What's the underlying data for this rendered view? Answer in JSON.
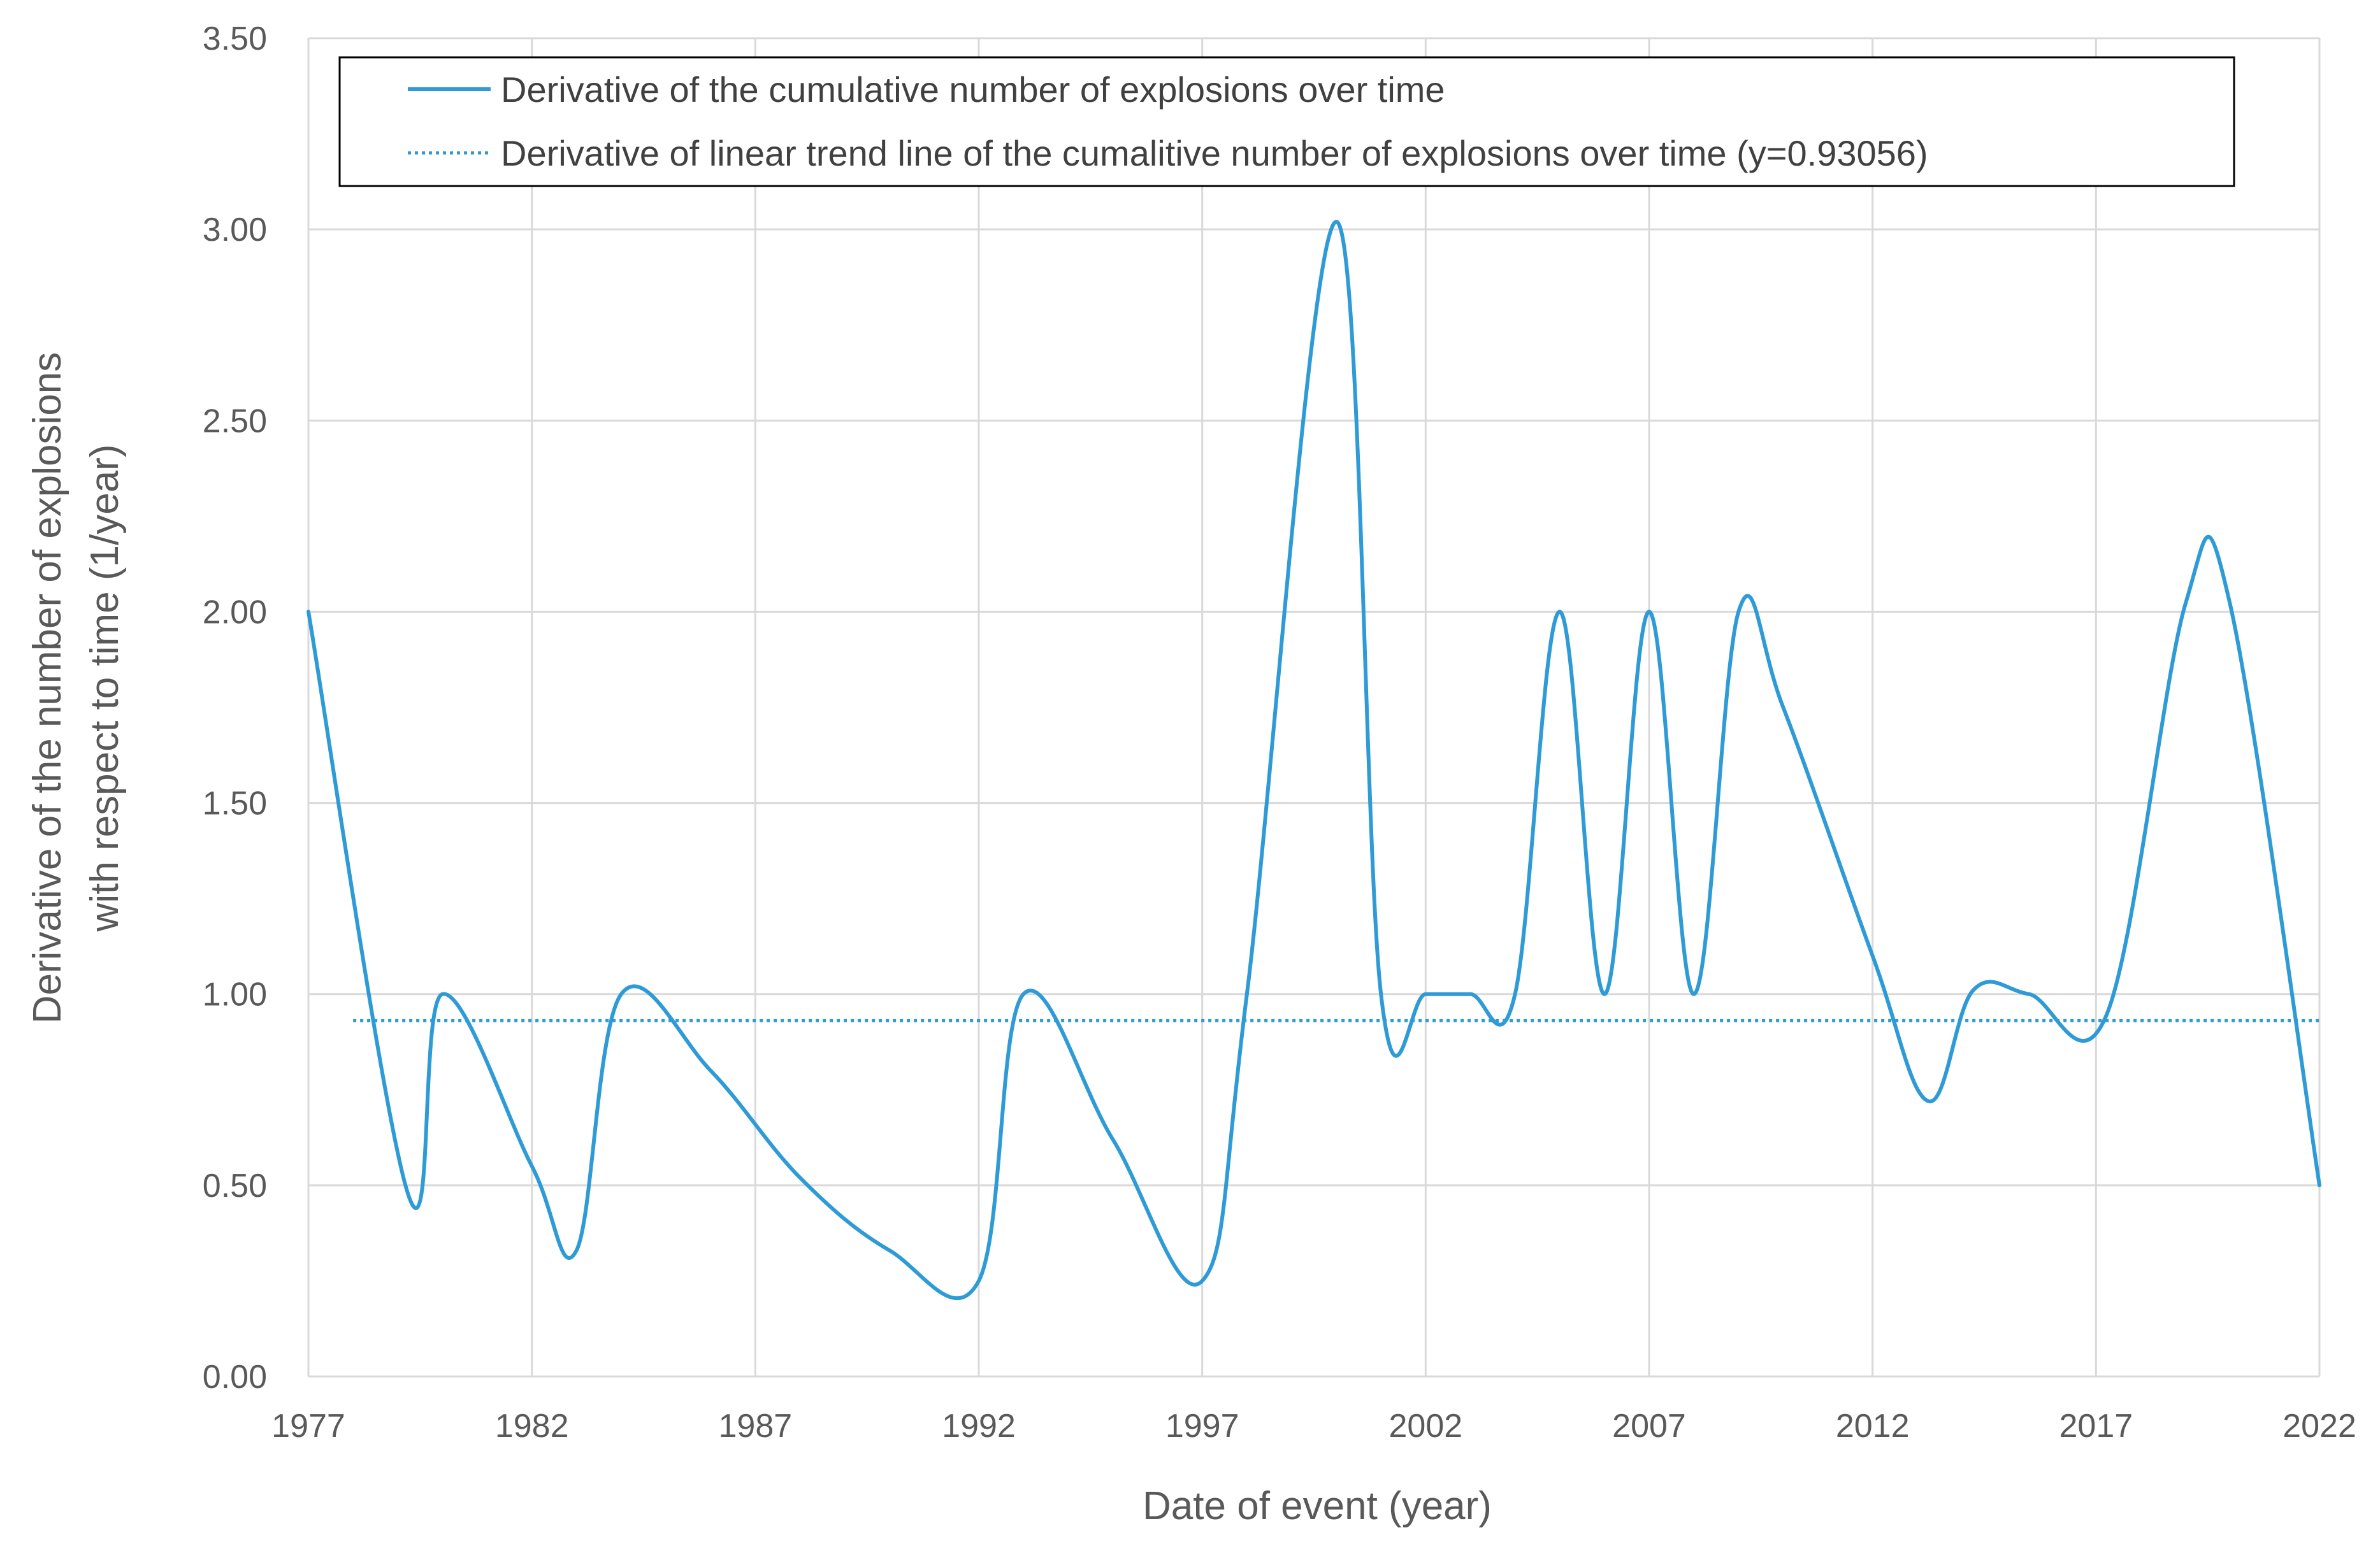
{
  "chart_data": {
    "type": "line",
    "xlabel": "Date of event (year)",
    "ylabel_line1": "Derivative of the number of explosions",
    "ylabel_line2": "with respect to time (1/year)",
    "xlim": [
      1977,
      2022
    ],
    "ylim": [
      0,
      3.5
    ],
    "x_ticks": [
      1977,
      1982,
      1987,
      1992,
      1997,
      2002,
      2007,
      2012,
      2017,
      2022
    ],
    "y_ticks": [
      "0.00",
      "0.50",
      "1.00",
      "1.50",
      "2.00",
      "2.50",
      "3.00",
      "3.50"
    ],
    "grid": true,
    "legend_position": "top",
    "series": [
      {
        "name": "Derivative of the cumulative number of explosions over time",
        "style": "solid",
        "color": "#2e9bd6",
        "x": [
          1977,
          1979.25,
          1980.0,
          1982.0,
          1983.0,
          1984.0,
          1986.0,
          1988.0,
          1990.0,
          1992.0,
          1993.0,
          1995.0,
          1997.0,
          1998.0,
          2000.0,
          2001.0,
          2002.0,
          2003.0,
          2004.0,
          2005.0,
          2006.0,
          2007.0,
          2008.0,
          2009.0,
          2010.0,
          2012.0,
          2013.25,
          2014.25,
          2015.5,
          2017.25,
          2019.0,
          2020.0,
          2022.0
        ],
        "y": [
          2.0,
          0.47,
          1.0,
          0.55,
          0.33,
          1.0,
          0.8,
          0.52,
          0.33,
          0.25,
          1.0,
          0.62,
          0.25,
          1.0,
          3.02,
          1.0,
          1.0,
          1.0,
          1.0,
          2.0,
          1.0,
          2.0,
          1.0,
          2.0,
          1.75,
          1.1,
          0.72,
          1.01,
          1.0,
          0.95,
          2.02,
          2.02,
          0.5
        ]
      },
      {
        "name": "Derivative of linear trend line of the cumalitive number of explosions over time (y=0.93056)",
        "style": "dotted",
        "color": "#2e9bd6",
        "x": [
          1978,
          2022
        ],
        "y": [
          0.93056,
          0.93056
        ]
      }
    ]
  }
}
